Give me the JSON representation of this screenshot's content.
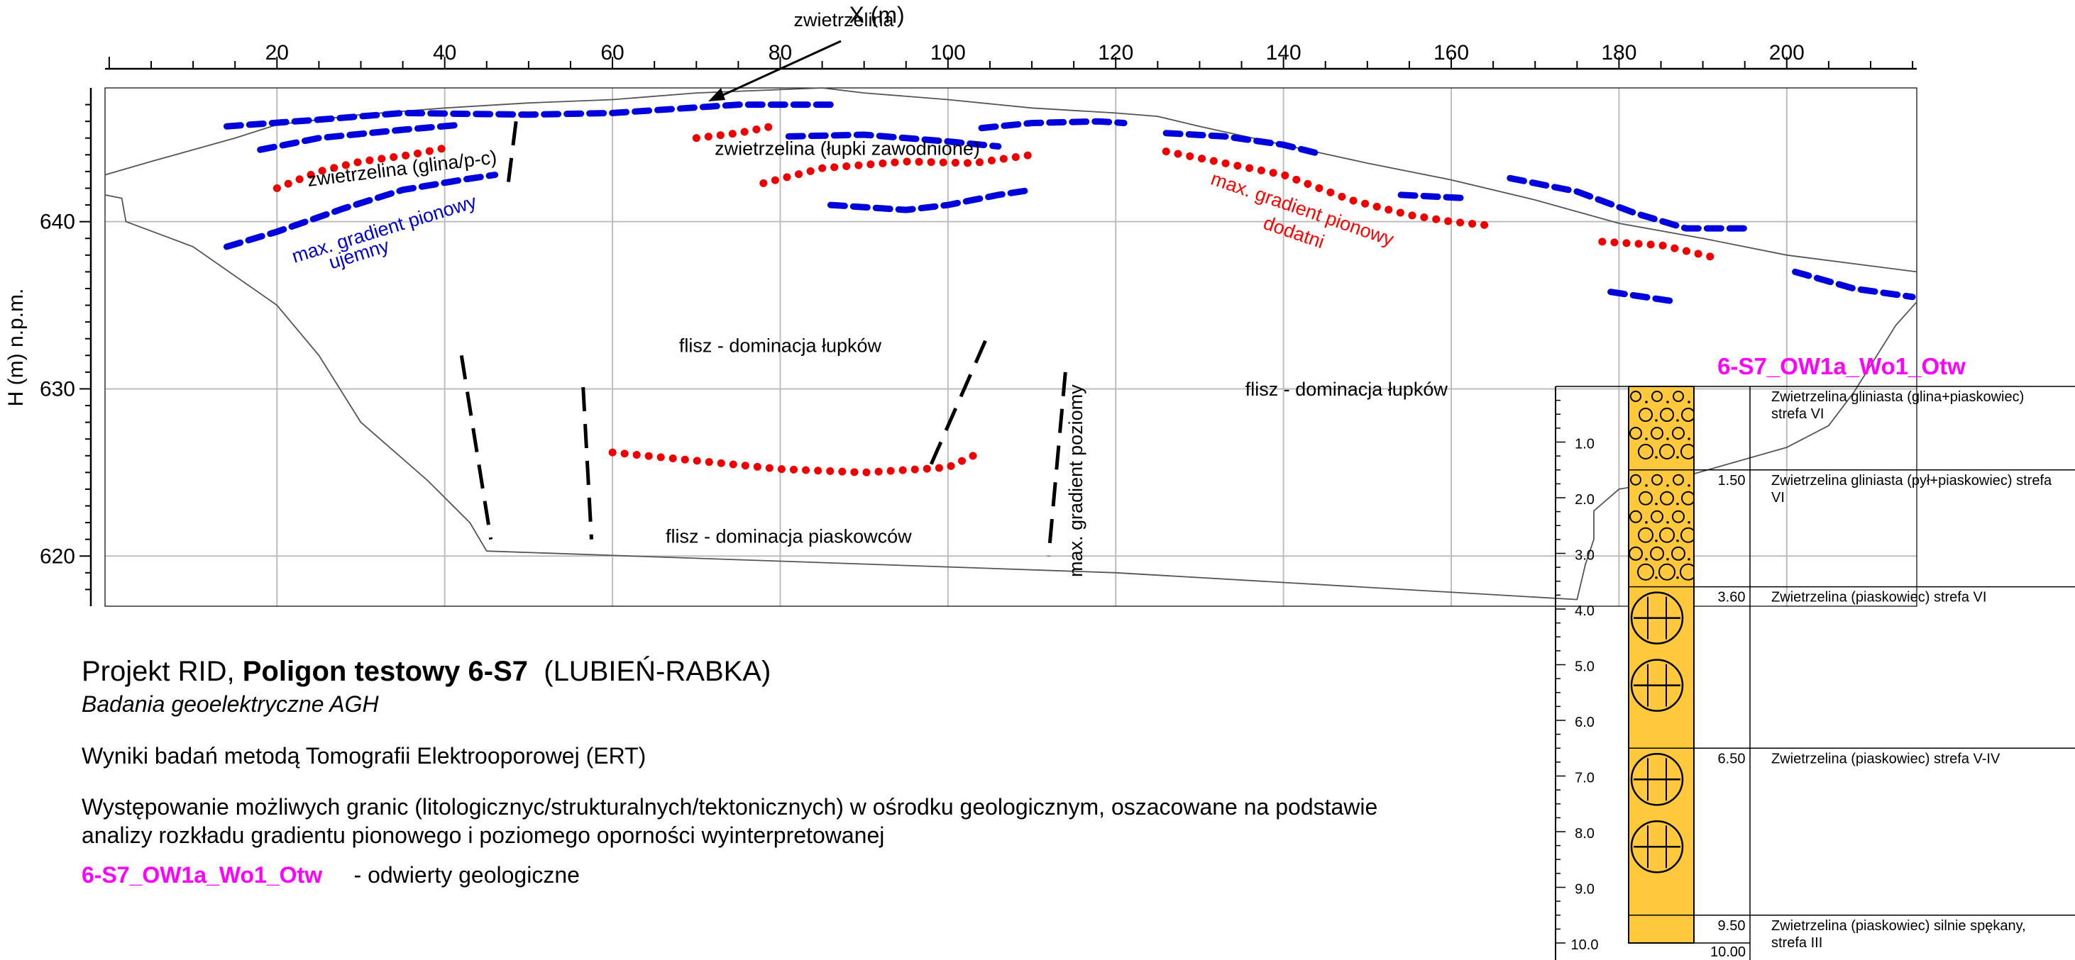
{
  "chart_data": {
    "type": "diagram",
    "x_axis": {
      "label": "X (m)",
      "range": [
        -0.5,
        215.5
      ],
      "major_ticks": [
        20,
        40,
        60,
        80,
        100,
        120,
        140,
        160,
        180,
        200
      ],
      "minor_step": 5
    },
    "y_axis": {
      "label": "H (m) n.p.m.",
      "range": [
        617,
        648
      ],
      "major_ticks": [
        620,
        630,
        640
      ]
    },
    "grid": true,
    "topography": [
      [
        -0.5,
        642.8
      ],
      [
        5,
        643.6
      ],
      [
        10,
        644.3
      ],
      [
        15,
        645.0
      ],
      [
        20,
        645.8
      ],
      [
        25,
        646.1
      ],
      [
        30,
        646.4
      ],
      [
        40,
        646.8
      ],
      [
        50,
        647.1
      ],
      [
        60,
        647.3
      ],
      [
        70,
        647.7
      ],
      [
        80,
        647.9
      ],
      [
        85,
        648.0
      ],
      [
        90,
        647.7
      ],
      [
        100,
        647.3
      ],
      [
        110,
        646.8
      ],
      [
        120,
        646.5
      ],
      [
        125,
        646.3
      ],
      [
        130,
        645.7
      ],
      [
        140,
        644.6
      ],
      [
        150,
        643.5
      ],
      [
        160,
        642.5
      ],
      [
        170,
        641.3
      ],
      [
        180,
        639.9
      ],
      [
        190,
        639.0
      ],
      [
        200,
        638.0
      ],
      [
        215.5,
        637.0
      ]
    ],
    "section_outline": [
      [
        -0.5,
        641.6
      ],
      [
        1.5,
        641.4
      ],
      [
        2,
        640.0
      ],
      [
        10,
        638.5
      ],
      [
        20,
        635.0
      ],
      [
        25,
        632.0
      ],
      [
        30,
        628.0
      ],
      [
        38,
        624.5
      ],
      [
        43,
        622.0
      ],
      [
        45,
        620.3
      ],
      [
        120,
        619.0
      ],
      [
        175,
        617.4
      ],
      [
        176,
        619.5
      ],
      [
        177,
        621.0
      ],
      [
        177,
        622.7
      ],
      [
        180,
        624.0
      ],
      [
        186,
        624.5
      ],
      [
        200,
        626.5
      ],
      [
        205,
        627.8
      ],
      [
        208,
        629.8
      ],
      [
        213,
        633.8
      ],
      [
        215.5,
        635.2
      ]
    ],
    "series": [
      {
        "style": "negative",
        "points": [
          [
            14,
            645.7
          ],
          [
            25,
            646.1
          ],
          [
            35,
            646.5
          ],
          [
            50,
            646.4
          ],
          [
            60,
            646.5
          ],
          [
            75,
            647.0
          ],
          [
            87,
            647.0
          ]
        ]
      },
      {
        "style": "negative",
        "points": [
          [
            18,
            644.3
          ],
          [
            25,
            645.0
          ],
          [
            35,
            645.5
          ],
          [
            42,
            645.8
          ]
        ]
      },
      {
        "style": "negative",
        "points": [
          [
            14,
            638.5
          ],
          [
            20,
            639.4
          ],
          [
            28,
            640.8
          ],
          [
            35,
            641.9
          ],
          [
            42,
            642.5
          ],
          [
            46,
            642.8
          ]
        ]
      },
      {
        "style": "negative",
        "points": [
          [
            81,
            645.1
          ],
          [
            90,
            645.2
          ],
          [
            100,
            644.8
          ],
          [
            106,
            644.5
          ]
        ]
      },
      {
        "style": "negative",
        "points": [
          [
            104,
            645.6
          ],
          [
            110,
            645.9
          ],
          [
            118,
            646.0
          ],
          [
            121,
            645.9
          ]
        ]
      },
      {
        "style": "negative",
        "points": [
          [
            86,
            641.0
          ],
          [
            95,
            640.7
          ],
          [
            100,
            641.0
          ],
          [
            106,
            641.6
          ],
          [
            110,
            641.9
          ]
        ]
      },
      {
        "style": "negative",
        "points": [
          [
            126,
            645.3
          ],
          [
            133,
            645.1
          ],
          [
            140,
            644.6
          ],
          [
            144,
            644.1
          ]
        ]
      },
      {
        "style": "negative",
        "points": [
          [
            154,
            641.6
          ],
          [
            162,
            641.4
          ]
        ]
      },
      {
        "style": "negative",
        "points": [
          [
            167,
            642.6
          ],
          [
            175,
            641.8
          ],
          [
            182,
            640.5
          ],
          [
            188,
            639.6
          ],
          [
            195,
            639.6
          ]
        ]
      },
      {
        "style": "negative",
        "points": [
          [
            179,
            635.8
          ],
          [
            187,
            635.2
          ]
        ]
      },
      {
        "style": "negative",
        "points": [
          [
            201,
            637.0
          ],
          [
            208,
            636.0
          ],
          [
            215,
            635.5
          ]
        ]
      },
      {
        "style": "positive",
        "points": [
          [
            20,
            642.0
          ],
          [
            25,
            643.0
          ],
          [
            30,
            643.6
          ],
          [
            36,
            644.0
          ],
          [
            41,
            644.5
          ]
        ]
      },
      {
        "style": "positive",
        "points": [
          [
            70,
            645.0
          ],
          [
            75,
            645.3
          ],
          [
            79,
            645.7
          ]
        ]
      },
      {
        "style": "positive",
        "points": [
          [
            78,
            642.3
          ],
          [
            85,
            643.2
          ],
          [
            95,
            643.6
          ],
          [
            103,
            643.5
          ],
          [
            110,
            644.0
          ]
        ]
      },
      {
        "style": "positive",
        "points": [
          [
            126,
            644.2
          ],
          [
            132,
            643.6
          ],
          [
            140,
            642.8
          ],
          [
            148,
            641.3
          ],
          [
            155,
            640.4
          ],
          [
            160,
            640.0
          ],
          [
            164,
            639.8
          ]
        ]
      },
      {
        "style": "positive",
        "points": [
          [
            178,
            638.8
          ],
          [
            185,
            638.6
          ],
          [
            191,
            637.9
          ]
        ]
      },
      {
        "style": "positive",
        "points": [
          [
            60,
            626.2
          ],
          [
            70,
            625.7
          ],
          [
            80,
            625.2
          ],
          [
            90,
            625.0
          ],
          [
            100,
            625.3
          ],
          [
            103,
            626.0
          ]
        ]
      },
      {
        "style": "horizontal",
        "points": [
          [
            48.5,
            646.0
          ],
          [
            47.5,
            642.0
          ]
        ]
      },
      {
        "style": "horizontal",
        "points": [
          [
            42,
            632.0
          ],
          [
            45.5,
            621.0
          ]
        ]
      },
      {
        "style": "horizontal",
        "points": [
          [
            56.5,
            630.1
          ],
          [
            57.5,
            621.0
          ]
        ]
      },
      {
        "style": "horizontal",
        "points": [
          [
            98,
            625.5
          ],
          [
            105,
            633.5
          ]
        ]
      },
      {
        "style": "horizontal",
        "points": [
          [
            114,
            631.0
          ],
          [
            112,
            620.0
          ]
        ]
      }
    ],
    "annotations": [
      {
        "text": "zwietrzelina (glina/p-c)",
        "color": "#000000",
        "x": 35,
        "y": 642.8
      },
      {
        "text": "zwietrzelina (łupki zawodnione)",
        "color": "#000000",
        "x": 88,
        "y": 644.0
      },
      {
        "text": "max. gradient pionowy",
        "color": "#0000cc",
        "x": 33,
        "y": 639.2
      },
      {
        "text": "ujemny",
        "color": "#0000cc",
        "x": 30,
        "y": 637.7
      },
      {
        "text": "max. gradient pionowy",
        "color": "#ff0000",
        "x": 142,
        "y": 640.4
      },
      {
        "text": "dodatni",
        "color": "#ff0000",
        "x": 141,
        "y": 639.0
      },
      {
        "text": "flisz  - dominacja łupków",
        "color": "#000000",
        "x": 80,
        "y": 632.2
      },
      {
        "text": "flisz  - dominacja łupków",
        "color": "#000000",
        "x": 147.5,
        "y": 629.6
      },
      {
        "text": "flisz  - dominacja piaskowców",
        "color": "#000000",
        "x": 81,
        "y": 620.8
      },
      {
        "text": "max. gradient poziomy",
        "color": "#000000",
        "x": 116,
        "y": 624.5
      },
      {
        "text": "zwietrzelina",
        "color": "#000000",
        "x": 90,
        "y": 654.0
      }
    ],
    "borehole": {
      "name": "6-S7_OW1a_Wo1_Otw",
      "depth_ticks": [
        "1.0",
        "2.0",
        "3.0",
        "4.0",
        "5.0",
        "6.0",
        "7.0",
        "8.0",
        "9.0",
        "10.0"
      ],
      "layers": [
        {
          "top": 0,
          "bottom": 1.5,
          "depth_label": "",
          "pattern": "gravel",
          "description": "Zwietrzelina gliniasta (glina+piaskowiec) strefa VI"
        },
        {
          "top": 1.5,
          "bottom": 3.6,
          "depth_label": "1.50",
          "pattern": "gravel",
          "description": "Zwietrzelina gliniasta (pył+piaskowiec) strefa VI"
        },
        {
          "top": 3.6,
          "bottom": 6.5,
          "depth_label": "3.60",
          "pattern": "sandstone",
          "description": "Zwietrzelina (piaskowiec) strefa VI"
        },
        {
          "top": 6.5,
          "bottom": 9.5,
          "depth_label": "6.50",
          "pattern": "sandstone",
          "description": "Zwietrzelina (piaskowiec) strefa V-IV"
        },
        {
          "top": 9.5,
          "bottom": 10.0,
          "depth_label": "9.50",
          "pattern": "sandstone",
          "description": "Zwietrzelina (piaskowiec) silnie spękany, strefa III"
        }
      ],
      "bottom_label": "10.00"
    }
  },
  "colors": {
    "negative": "#0000dd",
    "positive": "#ee0000",
    "magenta": "#ff00ff",
    "column_fill": "#ffc83d",
    "grid": "#bdbdbd"
  },
  "info": {
    "title_prefix": "Projekt RID, ",
    "title_bold": "Poligon testowy 6-S7",
    "title_suffix": "  (LUBIEŃ-RABKA)",
    "subtitle": "Badania geoelektryczne AGH",
    "method": "Wyniki  badań metodą Tomografii Elektrooporowej (ERT)",
    "description_line1": "Występowanie możliwych granic (litologicznyc/strukturalnych/tektonicznych) w ośrodku geologicznym, oszacowane na podstawie",
    "description_line2": "analizy rozkładu gradientu pionowego i poziomego oporności wyinterpretowanej",
    "legend_name": "6-S7_OW1a_Wo1_Otw",
    "legend_text": "     - odwierty geologiczne"
  }
}
